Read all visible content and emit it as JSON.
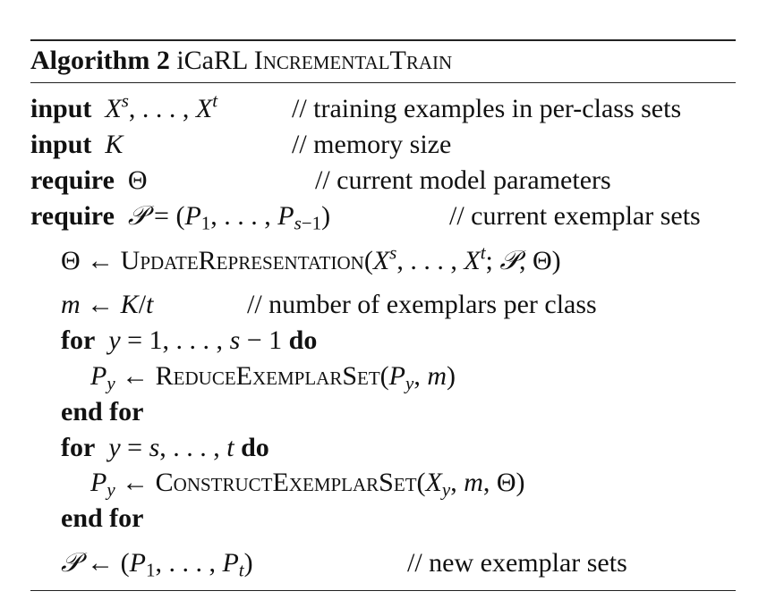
{
  "caption": {
    "label": "Algorithm 2",
    "name": "iCaRL",
    "procedure": "IncrementalTrain"
  },
  "keywords": {
    "input": "input",
    "require": "require",
    "for": "for",
    "do": "do",
    "end_for": "end for"
  },
  "functions": {
    "update_representation": "UpdateRepresentation",
    "reduce_exemplar_set": "ReduceExemplarSet",
    "construct_exemplar_set": "ConstructExemplarSet"
  },
  "comments": {
    "training_examples": "// training examples in per-class sets",
    "memory_size": "// memory size",
    "model_params": "// current model parameters",
    "exemplar_sets": "// current exemplar sets",
    "exemplars_per_class": "// number of exemplars per class",
    "new_exemplar_sets": "// new exemplar sets"
  }
}
